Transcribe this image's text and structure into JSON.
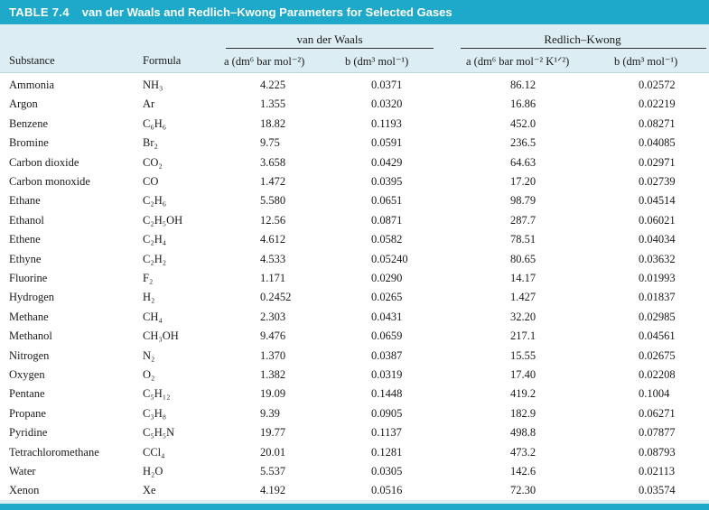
{
  "title": {
    "number": "TABLE 7.4",
    "text": "van der Waals and Redlich–Kwong Parameters for Selected Gases"
  },
  "groups": {
    "vdw": "van der Waals",
    "rk": "Redlich–Kwong"
  },
  "columns": {
    "substance": "Substance",
    "formula": "Formula",
    "vdw_a": "a (dm⁶ bar mol⁻²)",
    "vdw_b": "b (dm³ mol⁻¹)",
    "rk_a": "a (dm⁶ bar mol⁻² K¹ᐟ²)",
    "rk_b": "b (dm³ mol⁻¹)"
  },
  "rows": [
    {
      "substance": "Ammonia",
      "formula": "NH₃",
      "vdw_a": "4.225",
      "vdw_b": "0.0371",
      "rk_a": "86.12",
      "rk_b": "0.02572"
    },
    {
      "substance": "Argon",
      "formula": "Ar",
      "vdw_a": "1.355",
      "vdw_b": "0.0320",
      "rk_a": "16.86",
      "rk_b": "0.02219"
    },
    {
      "substance": "Benzene",
      "formula": "C₆H₆",
      "vdw_a": "18.82",
      "vdw_b": "0.1193",
      "rk_a": "452.0",
      "rk_b": "0.08271"
    },
    {
      "substance": "Bromine",
      "formula": "Br₂",
      "vdw_a": "9.75",
      "vdw_b": "0.0591",
      "rk_a": "236.5",
      "rk_b": "0.04085"
    },
    {
      "substance": "Carbon dioxide",
      "formula": "CO₂",
      "vdw_a": "3.658",
      "vdw_b": "0.0429",
      "rk_a": "64.63",
      "rk_b": "0.02971"
    },
    {
      "substance": "Carbon monoxide",
      "formula": "CO",
      "vdw_a": "1.472",
      "vdw_b": "0.0395",
      "rk_a": "17.20",
      "rk_b": "0.02739"
    },
    {
      "substance": "Ethane",
      "formula": "C₂H₆",
      "vdw_a": "5.580",
      "vdw_b": "0.0651",
      "rk_a": "98.79",
      "rk_b": "0.04514"
    },
    {
      "substance": "Ethanol",
      "formula": "C₂H₅OH",
      "vdw_a": "12.56",
      "vdw_b": "0.0871",
      "rk_a": "287.7",
      "rk_b": "0.06021"
    },
    {
      "substance": "Ethene",
      "formula": "C₂H₄",
      "vdw_a": "4.612",
      "vdw_b": "0.0582",
      "rk_a": "78.51",
      "rk_b": "0.04034"
    },
    {
      "substance": "Ethyne",
      "formula": "C₂H₂",
      "vdw_a": "4.533",
      "vdw_b": "0.05240",
      "rk_a": "80.65",
      "rk_b": "0.03632"
    },
    {
      "substance": "Fluorine",
      "formula": "F₂",
      "vdw_a": "1.171",
      "vdw_b": "0.0290",
      "rk_a": "14.17",
      "rk_b": "0.01993"
    },
    {
      "substance": "Hydrogen",
      "formula": "H₂",
      "vdw_a": "0.2452",
      "vdw_b": "0.0265",
      "rk_a": "1.427",
      "rk_b": "0.01837"
    },
    {
      "substance": "Methane",
      "formula": "CH₄",
      "vdw_a": "2.303",
      "vdw_b": "0.0431",
      "rk_a": "32.20",
      "rk_b": "0.02985"
    },
    {
      "substance": "Methanol",
      "formula": "CH₃OH",
      "vdw_a": "9.476",
      "vdw_b": "0.0659",
      "rk_a": "217.1",
      "rk_b": "0.04561"
    },
    {
      "substance": "Nitrogen",
      "formula": "N₂",
      "vdw_a": "1.370",
      "vdw_b": "0.0387",
      "rk_a": "15.55",
      "rk_b": "0.02675"
    },
    {
      "substance": "Oxygen",
      "formula": "O₂",
      "vdw_a": "1.382",
      "vdw_b": "0.0319",
      "rk_a": "17.40",
      "rk_b": "0.02208"
    },
    {
      "substance": "Pentane",
      "formula": "C₅H₁₂",
      "vdw_a": "19.09",
      "vdw_b": "0.1448",
      "rk_a": "419.2",
      "rk_b": "0.1004"
    },
    {
      "substance": "Propane",
      "formula": "C₃H₈",
      "vdw_a": "9.39",
      "vdw_b": "0.0905",
      "rk_a": "182.9",
      "rk_b": "0.06271"
    },
    {
      "substance": "Pyridine",
      "formula": "C₅H₅N",
      "vdw_a": "19.77",
      "vdw_b": "0.1137",
      "rk_a": "498.8",
      "rk_b": "0.07877"
    },
    {
      "substance": "Tetrachloromethane",
      "formula": "CCl₄",
      "vdw_a": "20.01",
      "vdw_b": "0.1281",
      "rk_a": "473.2",
      "rk_b": "0.08793"
    },
    {
      "substance": "Water",
      "formula": "H₂O",
      "vdw_a": "5.537",
      "vdw_b": "0.0305",
      "rk_a": "142.6",
      "rk_b": "0.02113"
    },
    {
      "substance": "Xenon",
      "formula": "Xe",
      "vdw_a": "4.192",
      "vdw_b": "0.0516",
      "rk_a": "72.30",
      "rk_b": "0.03574"
    }
  ]
}
